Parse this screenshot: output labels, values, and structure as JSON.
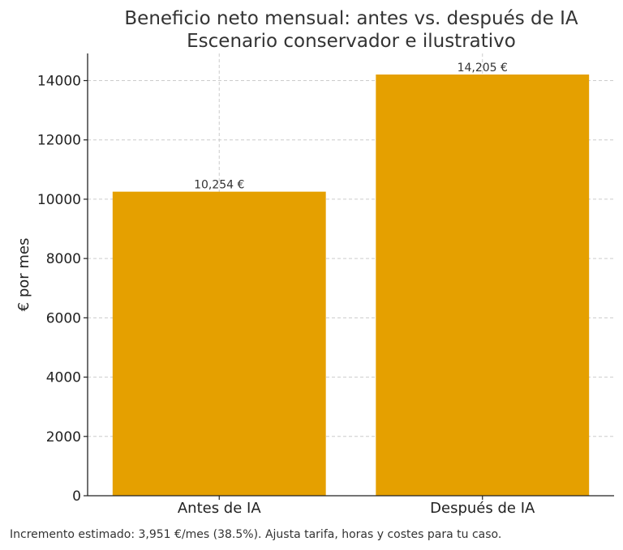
{
  "chart_data": {
    "type": "bar",
    "title": "Beneficio neto mensual: antes vs. después de IA",
    "subtitle": "Escenario conservador e ilustrativo",
    "ylabel": "€ por mes",
    "xlabel": "",
    "categories": [
      "Antes de IA",
      "Después de IA"
    ],
    "values": [
      10254,
      14205
    ],
    "value_labels": [
      "10,254 €",
      "14,205 €"
    ],
    "ylim": [
      0,
      14915
    ],
    "yticks": [
      0,
      2000,
      4000,
      6000,
      8000,
      10000,
      12000,
      14000
    ],
    "ytick_labels": [
      "0",
      "2000",
      "4000",
      "6000",
      "8000",
      "10000",
      "12000",
      "14000"
    ],
    "grid": true,
    "bar_color": "#E5A000"
  },
  "footnote": "Incremento estimado: 3,951 €/mes (38.5%).  Ajusta tarifa, horas y costes para tu caso."
}
